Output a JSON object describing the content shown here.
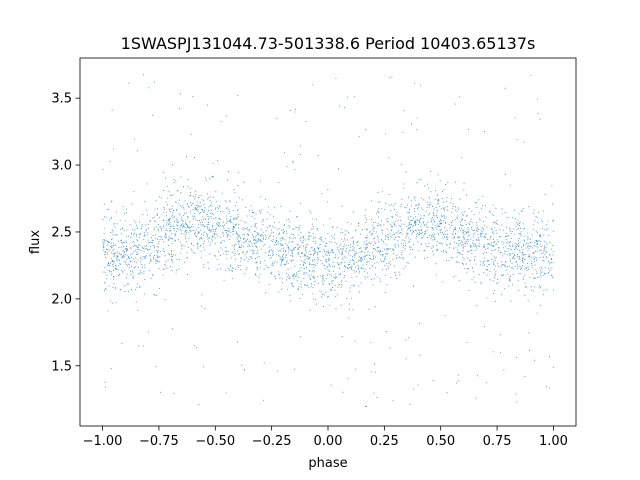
{
  "chart_data": {
    "type": "scatter",
    "title": "1SWASPJ131044.73-501338.6 Period 10403.65137s",
    "xlabel": "phase",
    "ylabel": "flux",
    "xlim": [
      -1.1,
      1.1
    ],
    "ylim": [
      1.05,
      3.8
    ],
    "xticks": [
      -1.0,
      -0.75,
      -0.5,
      -0.25,
      0.0,
      0.25,
      0.5,
      0.75,
      1.0
    ],
    "xtick_labels": [
      "−1.00",
      "−0.75",
      "−0.50",
      "−0.25",
      "0.00",
      "0.25",
      "0.50",
      "0.75",
      "1.00"
    ],
    "yticks": [
      1.5,
      2.0,
      2.5,
      3.0,
      3.5
    ],
    "ytick_labels": [
      "1.5",
      "2.0",
      "2.5",
      "3.0",
      "3.5"
    ],
    "grid": false,
    "marker_color": "#1f77b4",
    "series": [
      {
        "x_range": [
          -1.0,
          1.0
        ],
        "approx_point_count": 30000,
        "trend_x": [
          -1.0,
          -0.9,
          -0.8,
          -0.7,
          -0.6,
          -0.5,
          -0.4,
          -0.3,
          -0.2,
          -0.1,
          0.0,
          0.1,
          0.2,
          0.3,
          0.4,
          0.5,
          0.6,
          0.7,
          0.8,
          0.9,
          1.0
        ],
        "trend_y": [
          2.32,
          2.34,
          2.4,
          2.5,
          2.58,
          2.55,
          2.47,
          2.42,
          2.36,
          2.32,
          2.27,
          2.3,
          2.38,
          2.48,
          2.58,
          2.55,
          2.47,
          2.42,
          2.36,
          2.33,
          2.32
        ],
        "core_spread": 0.14,
        "outlier_range": [
          1.17,
          3.68
        ]
      }
    ]
  }
}
